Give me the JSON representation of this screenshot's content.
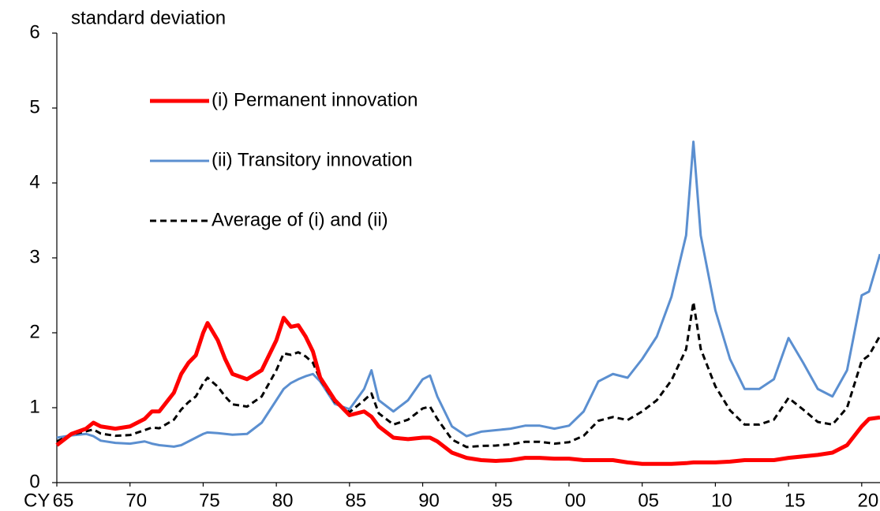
{
  "chart_data": {
    "type": "line",
    "y_label": "standard deviation",
    "x_label": "CY",
    "xlim": [
      1965,
      2021.25
    ],
    "ylim": [
      0,
      6
    ],
    "yticks": [
      0,
      1,
      2,
      3,
      4,
      5,
      6
    ],
    "xticks": [
      {
        "value": 1965,
        "label": "65"
      },
      {
        "value": 1970,
        "label": "70"
      },
      {
        "value": 1975,
        "label": "75"
      },
      {
        "value": 1980,
        "label": "80"
      },
      {
        "value": 1985,
        "label": "85"
      },
      {
        "value": 1990,
        "label": "90"
      },
      {
        "value": 1995,
        "label": "95"
      },
      {
        "value": 2000,
        "label": "00"
      },
      {
        "value": 2005,
        "label": "05"
      },
      {
        "value": 2010,
        "label": "10"
      },
      {
        "value": 2015,
        "label": "15"
      },
      {
        "value": 2020,
        "label": "20"
      }
    ],
    "x": [
      1965,
      1966,
      1967,
      1967.5,
      1968,
      1969,
      1970,
      1971,
      1971.5,
      1972,
      1973,
      1973.5,
      1974,
      1974.5,
      1975,
      1975.3,
      1976,
      1976.5,
      1977,
      1978,
      1979,
      1979.5,
      1980,
      1980.5,
      1981,
      1981.5,
      1982,
      1982.5,
      1983,
      1984,
      1985,
      1986,
      1986.5,
      1987,
      1988,
      1989,
      1990,
      1990.5,
      1991,
      1992,
      1993,
      1994,
      1995,
      1996,
      1997,
      1998,
      1999,
      2000,
      2001,
      2002,
      2003,
      2004,
      2005,
      2006,
      2007,
      2008,
      2008.5,
      2009,
      2010,
      2011,
      2012,
      2013,
      2014,
      2015,
      2016,
      2017,
      2018,
      2019,
      2020,
      2020.5,
      2021.25
    ],
    "series": [
      {
        "name": "(i) Permanent innovation",
        "color": "#ff0000",
        "line_style": "solid",
        "values": [
          0.5,
          0.65,
          0.72,
          0.8,
          0.75,
          0.72,
          0.75,
          0.85,
          0.95,
          0.95,
          1.2,
          1.45,
          1.6,
          1.7,
          2.0,
          2.13,
          1.9,
          1.65,
          1.45,
          1.38,
          1.5,
          1.7,
          1.9,
          2.2,
          2.08,
          2.1,
          1.95,
          1.75,
          1.4,
          1.1,
          0.9,
          0.95,
          0.88,
          0.75,
          0.6,
          0.58,
          0.6,
          0.6,
          0.55,
          0.4,
          0.33,
          0.3,
          0.29,
          0.3,
          0.33,
          0.33,
          0.32,
          0.32,
          0.3,
          0.3,
          0.3,
          0.27,
          0.25,
          0.25,
          0.25,
          0.26,
          0.27,
          0.27,
          0.27,
          0.28,
          0.3,
          0.3,
          0.3,
          0.33,
          0.35,
          0.37,
          0.4,
          0.5,
          0.75,
          0.85,
          0.87
        ]
      },
      {
        "name": "(ii) Transitory innovation",
        "color": "#5b8fd0",
        "line_style": "solid",
        "values": [
          0.6,
          0.63,
          0.65,
          0.62,
          0.56,
          0.53,
          0.52,
          0.55,
          0.52,
          0.5,
          0.48,
          0.5,
          0.55,
          0.6,
          0.65,
          0.67,
          0.66,
          0.65,
          0.64,
          0.65,
          0.8,
          0.95,
          1.1,
          1.25,
          1.33,
          1.38,
          1.42,
          1.45,
          1.35,
          1.05,
          0.98,
          1.25,
          1.5,
          1.1,
          0.95,
          1.1,
          1.38,
          1.43,
          1.15,
          0.75,
          0.62,
          0.68,
          0.7,
          0.72,
          0.76,
          0.76,
          0.72,
          0.76,
          0.95,
          1.35,
          1.45,
          1.4,
          1.65,
          1.95,
          2.48,
          3.3,
          4.55,
          3.3,
          2.3,
          1.65,
          1.25,
          1.25,
          1.38,
          1.93,
          1.6,
          1.25,
          1.15,
          1.5,
          2.5,
          2.55,
          3.05
        ]
      },
      {
        "name": "Average of (i) and (ii)",
        "color": "#000000",
        "line_style": "dashed",
        "values": [
          0.55,
          0.64,
          0.685,
          0.71,
          0.655,
          0.625,
          0.635,
          0.7,
          0.735,
          0.725,
          0.84,
          0.975,
          1.075,
          1.15,
          1.325,
          1.4,
          1.28,
          1.15,
          1.045,
          1.015,
          1.15,
          1.325,
          1.5,
          1.725,
          1.705,
          1.74,
          1.685,
          1.6,
          1.375,
          1.075,
          0.94,
          1.1,
          1.19,
          0.925,
          0.775,
          0.84,
          0.99,
          1.015,
          0.85,
          0.575,
          0.475,
          0.49,
          0.495,
          0.51,
          0.545,
          0.545,
          0.52,
          0.54,
          0.625,
          0.825,
          0.875,
          0.835,
          0.95,
          1.1,
          1.365,
          1.78,
          2.41,
          1.785,
          1.285,
          0.965,
          0.775,
          0.775,
          0.84,
          1.13,
          0.975,
          0.81,
          0.775,
          1.0,
          1.625,
          1.7,
          1.96
        ]
      }
    ]
  }
}
